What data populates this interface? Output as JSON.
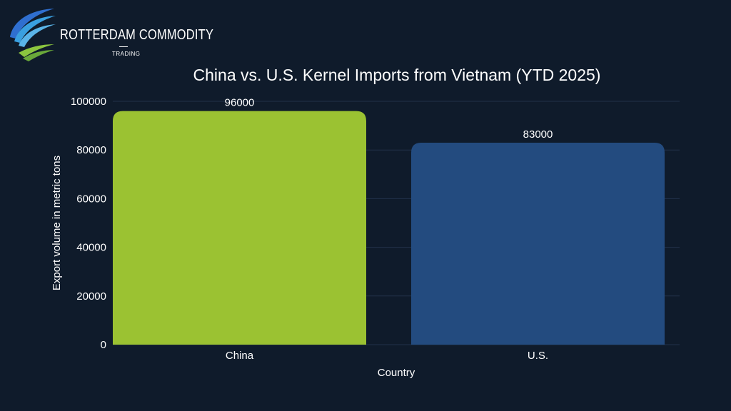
{
  "brand": {
    "name": "ROTTERDAM COMMODITY",
    "tagline": "TRADING",
    "colors": [
      "#2f6fd0",
      "#3aa0e0",
      "#8cc63f"
    ]
  },
  "chart_data": {
    "type": "bar",
    "title": "China vs. U.S. Kernel Imports from Vietnam (YTD 2025)",
    "xlabel": "Country",
    "ylabel": "Export volume in metric tons",
    "categories": [
      "China",
      "U.S."
    ],
    "values": [
      96000,
      83000
    ],
    "data_labels": [
      "96000",
      "83000"
    ],
    "colors": [
      "#9bc232",
      "#234b7f"
    ],
    "ylim": [
      0,
      100000
    ],
    "yticks": [
      "0",
      "20000",
      "40000",
      "60000",
      "80000",
      "100000"
    ],
    "ytick_values": [
      0,
      20000,
      40000,
      60000,
      80000,
      100000
    ],
    "grid": true,
    "legend": "none"
  }
}
